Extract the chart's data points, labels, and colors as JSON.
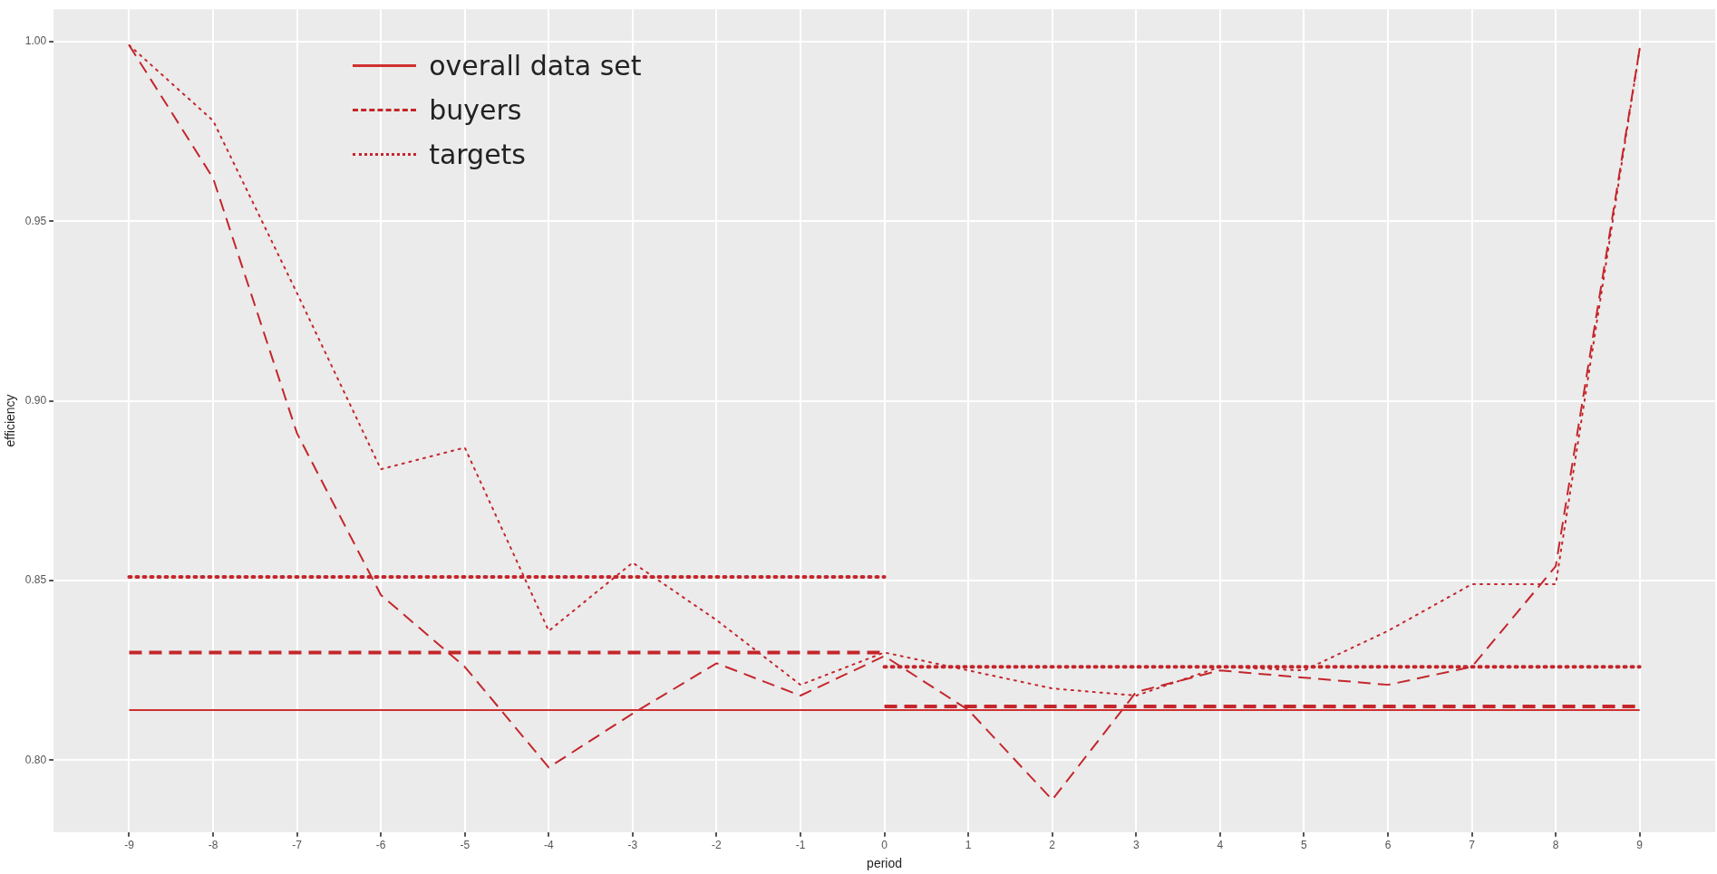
{
  "chart_data": {
    "type": "line",
    "xlabel": "period",
    "ylabel": "efficiency",
    "xlim": [
      -9.9,
      9.9
    ],
    "xticks": [
      -9,
      -8,
      -7,
      -6,
      -5,
      -4,
      -3,
      -2,
      -1,
      0,
      1,
      2,
      3,
      4,
      5,
      6,
      7,
      8,
      9
    ],
    "ylim": [
      0.78,
      1.009
    ],
    "yticks": [
      {
        "value": 0.8,
        "label": "0.80"
      },
      {
        "value": 0.85,
        "label": "0.85"
      },
      {
        "value": 0.9,
        "label": "0.90"
      },
      {
        "value": 0.95,
        "label": "0.95"
      },
      {
        "value": 1.0,
        "label": "1.00"
      }
    ],
    "grid": true,
    "legend": "top left",
    "marker": "none",
    "series": [
      {
        "name": "overall data set",
        "color": "#d03030",
        "line_style": "solid",
        "x": [
          -9,
          9
        ],
        "values": [
          0.814,
          0.814
        ]
      },
      {
        "name": "buyers",
        "color": "#c4262b",
        "line_style": "dashed",
        "x": [
          -9,
          -8,
          -7,
          -6,
          -5,
          -4,
          -3,
          -2,
          -1,
          0,
          1,
          2,
          3,
          4,
          5,
          6,
          7,
          8,
          9
        ],
        "values": [
          0.999,
          0.962,
          0.891,
          0.846,
          0.826,
          0.798,
          0.813,
          0.827,
          0.818,
          0.829,
          0.814,
          0.789,
          0.819,
          0.825,
          0.823,
          0.821,
          0.826,
          0.854,
          0.998
        ]
      },
      {
        "name": "targets",
        "color": "#c4262b",
        "line_style": "dotted",
        "x": [
          -9,
          -8,
          -7,
          -6,
          -5,
          -4,
          -3,
          -2,
          -1,
          0,
          1,
          2,
          3,
          4,
          5,
          6,
          7,
          8,
          9
        ],
        "values": [
          0.999,
          0.978,
          0.93,
          0.881,
          0.887,
          0.836,
          0.855,
          0.839,
          0.821,
          0.83,
          0.825,
          0.82,
          0.818,
          0.826,
          0.825,
          0.836,
          0.849,
          0.849,
          0.998
        ]
      },
      {
        "color": "#c4262b",
        "line_style": "dashed",
        "x": [
          -9,
          0
        ],
        "values": [
          0.83,
          0.83
        ]
      },
      {
        "color": "#c4262b",
        "line_style": "dashed",
        "x": [
          0,
          9
        ],
        "values": [
          0.815,
          0.815
        ]
      },
      {
        "color": "#c4262b",
        "line_style": "dotted",
        "x": [
          -9,
          0
        ],
        "values": [
          0.851,
          0.851
        ]
      },
      {
        "color": "#c4262b",
        "line_style": "dotted",
        "x": [
          0,
          9
        ],
        "values": [
          0.826,
          0.826
        ]
      }
    ]
  }
}
